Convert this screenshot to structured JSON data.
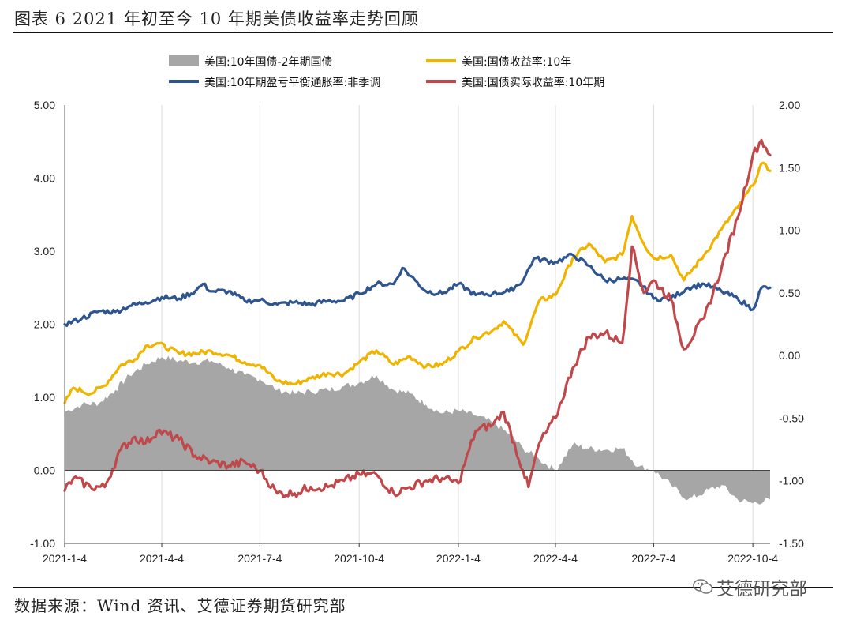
{
  "figure": {
    "title": "图表 6 2021 年初至今 10 年期美债收益率走势回顾",
    "source": "数据来源：Wind 资讯、艾德证券期货研究部",
    "watermark": "艾德研究部",
    "watermark_icon": "wechat-icon"
  },
  "chart_data": {
    "type": "line",
    "x_tick_labels": [
      "2021-1-4",
      "2021-4-4",
      "2021-7-4",
      "2021-10-4",
      "2022-1-4",
      "2022-4-4",
      "2022-7-4",
      "2022-10-4"
    ],
    "x_range": [
      "2021-01-04",
      "2022-10-20"
    ],
    "y_left": {
      "ticks": [
        "-1.00",
        "0.00",
        "1.00",
        "2.00",
        "3.00",
        "4.00",
        "5.00"
      ],
      "range": [
        -1,
        5
      ]
    },
    "y_right": {
      "ticks": [
        "-1.50",
        "-1.00",
        "-0.50",
        "0.00",
        "0.50",
        "1.00",
        "1.50",
        "2.00"
      ],
      "range": [
        -1.5,
        2
      ]
    },
    "grid": "vertical",
    "legend_position": "top",
    "series": [
      {
        "name": "美国:10年国债-2年期国债",
        "kind": "area",
        "axis": "left",
        "color": "#a6a6a6",
        "points": [
          [
            "2021-01-04",
            0.8
          ],
          [
            "2021-01-20",
            0.9
          ],
          [
            "2021-02-05",
            0.92
          ],
          [
            "2021-02-20",
            1.1
          ],
          [
            "2021-03-05",
            1.3
          ],
          [
            "2021-03-20",
            1.45
          ],
          [
            "2021-04-04",
            1.55
          ],
          [
            "2021-04-20",
            1.5
          ],
          [
            "2021-05-05",
            1.48
          ],
          [
            "2021-05-20",
            1.5
          ],
          [
            "2021-06-05",
            1.4
          ],
          [
            "2021-06-20",
            1.3
          ],
          [
            "2021-07-04",
            1.25
          ],
          [
            "2021-07-20",
            1.1
          ],
          [
            "2021-08-05",
            1.05
          ],
          [
            "2021-08-20",
            1.08
          ],
          [
            "2021-09-05",
            1.1
          ],
          [
            "2021-09-20",
            1.15
          ],
          [
            "2021-10-04",
            1.2
          ],
          [
            "2021-10-20",
            1.3
          ],
          [
            "2021-11-05",
            1.1
          ],
          [
            "2021-11-20",
            1.05
          ],
          [
            "2021-12-05",
            0.9
          ],
          [
            "2021-12-20",
            0.78
          ],
          [
            "2022-01-04",
            0.82
          ],
          [
            "2022-01-20",
            0.75
          ],
          [
            "2022-02-05",
            0.65
          ],
          [
            "2022-02-20",
            0.5
          ],
          [
            "2022-03-05",
            0.3
          ],
          [
            "2022-03-20",
            0.15
          ],
          [
            "2022-04-04",
            0.0
          ],
          [
            "2022-04-20",
            0.35
          ],
          [
            "2022-05-05",
            0.3
          ],
          [
            "2022-05-20",
            0.28
          ],
          [
            "2022-06-05",
            0.3
          ],
          [
            "2022-06-20",
            0.05
          ],
          [
            "2022-07-04",
            0.0
          ],
          [
            "2022-07-20",
            -0.2
          ],
          [
            "2022-08-05",
            -0.4
          ],
          [
            "2022-08-20",
            -0.3
          ],
          [
            "2022-09-05",
            -0.2
          ],
          [
            "2022-09-20",
            -0.4
          ],
          [
            "2022-10-04",
            -0.45
          ],
          [
            "2022-10-20",
            -0.4
          ]
        ]
      },
      {
        "name": "美国:国债收益率:10年",
        "kind": "line",
        "axis": "left",
        "color": "#f0b400",
        "points": [
          [
            "2021-01-04",
            0.92
          ],
          [
            "2021-01-12",
            1.13
          ],
          [
            "2021-01-28",
            1.05
          ],
          [
            "2021-02-10",
            1.16
          ],
          [
            "2021-02-25",
            1.44
          ],
          [
            "2021-03-10",
            1.52
          ],
          [
            "2021-03-20",
            1.7
          ],
          [
            "2021-03-31",
            1.74
          ],
          [
            "2021-04-20",
            1.6
          ],
          [
            "2021-05-05",
            1.6
          ],
          [
            "2021-05-20",
            1.63
          ],
          [
            "2021-06-05",
            1.58
          ],
          [
            "2021-06-20",
            1.48
          ],
          [
            "2021-07-04",
            1.44
          ],
          [
            "2021-07-20",
            1.22
          ],
          [
            "2021-08-05",
            1.18
          ],
          [
            "2021-08-20",
            1.26
          ],
          [
            "2021-09-05",
            1.33
          ],
          [
            "2021-09-20",
            1.32
          ],
          [
            "2021-10-04",
            1.48
          ],
          [
            "2021-10-20",
            1.64
          ],
          [
            "2021-11-05",
            1.45
          ],
          [
            "2021-11-20",
            1.56
          ],
          [
            "2021-12-05",
            1.42
          ],
          [
            "2021-12-20",
            1.45
          ],
          [
            "2022-01-04",
            1.63
          ],
          [
            "2022-01-20",
            1.82
          ],
          [
            "2022-02-05",
            1.92
          ],
          [
            "2022-02-15",
            2.04
          ],
          [
            "2022-03-05",
            1.72
          ],
          [
            "2022-03-20",
            2.32
          ],
          [
            "2022-04-04",
            2.4
          ],
          [
            "2022-04-20",
            2.9
          ],
          [
            "2022-05-05",
            3.1
          ],
          [
            "2022-05-20",
            2.85
          ],
          [
            "2022-06-05",
            2.95
          ],
          [
            "2022-06-14",
            3.48
          ],
          [
            "2022-06-25",
            3.1
          ],
          [
            "2022-07-04",
            2.9
          ],
          [
            "2022-07-20",
            2.95
          ],
          [
            "2022-08-01",
            2.6
          ],
          [
            "2022-08-20",
            2.95
          ],
          [
            "2022-09-05",
            3.3
          ],
          [
            "2022-09-20",
            3.6
          ],
          [
            "2022-10-04",
            3.9
          ],
          [
            "2022-10-12",
            4.2
          ],
          [
            "2022-10-20",
            4.1
          ]
        ]
      },
      {
        "name": "美国:10年期盈亏平衡通胀率:非季调",
        "kind": "line",
        "axis": "left",
        "color": "#2e5590",
        "points": [
          [
            "2021-01-04",
            2.0
          ],
          [
            "2021-01-20",
            2.08
          ],
          [
            "2021-02-05",
            2.18
          ],
          [
            "2021-02-20",
            2.17
          ],
          [
            "2021-03-05",
            2.25
          ],
          [
            "2021-03-20",
            2.3
          ],
          [
            "2021-04-04",
            2.37
          ],
          [
            "2021-04-20",
            2.35
          ],
          [
            "2021-05-05",
            2.45
          ],
          [
            "2021-05-12",
            2.55
          ],
          [
            "2021-05-20",
            2.45
          ],
          [
            "2021-06-05",
            2.45
          ],
          [
            "2021-06-20",
            2.32
          ],
          [
            "2021-07-04",
            2.33
          ],
          [
            "2021-07-20",
            2.27
          ],
          [
            "2021-08-05",
            2.3
          ],
          [
            "2021-08-20",
            2.27
          ],
          [
            "2021-09-05",
            2.32
          ],
          [
            "2021-09-20",
            2.32
          ],
          [
            "2021-10-04",
            2.42
          ],
          [
            "2021-10-20",
            2.55
          ],
          [
            "2021-11-05",
            2.55
          ],
          [
            "2021-11-13",
            2.77
          ],
          [
            "2021-11-25",
            2.6
          ],
          [
            "2021-12-05",
            2.45
          ],
          [
            "2021-12-20",
            2.42
          ],
          [
            "2022-01-04",
            2.55
          ],
          [
            "2022-01-20",
            2.4
          ],
          [
            "2022-02-05",
            2.42
          ],
          [
            "2022-02-20",
            2.45
          ],
          [
            "2022-03-05",
            2.6
          ],
          [
            "2022-03-15",
            2.9
          ],
          [
            "2022-04-04",
            2.85
          ],
          [
            "2022-04-20",
            2.95
          ],
          [
            "2022-05-05",
            2.8
          ],
          [
            "2022-05-20",
            2.6
          ],
          [
            "2022-06-05",
            2.62
          ],
          [
            "2022-06-20",
            2.58
          ],
          [
            "2022-07-04",
            2.35
          ],
          [
            "2022-07-20",
            2.35
          ],
          [
            "2022-08-05",
            2.5
          ],
          [
            "2022-08-20",
            2.55
          ],
          [
            "2022-09-05",
            2.45
          ],
          [
            "2022-09-20",
            2.35
          ],
          [
            "2022-10-04",
            2.2
          ],
          [
            "2022-10-12",
            2.5
          ],
          [
            "2022-10-20",
            2.5
          ]
        ]
      },
      {
        "name": "美国:国债实际收益率:10年期",
        "kind": "line",
        "axis": "right",
        "color": "#c0484b",
        "points": [
          [
            "2021-01-04",
            -1.08
          ],
          [
            "2021-01-12",
            -0.98
          ],
          [
            "2021-01-28",
            -1.05
          ],
          [
            "2021-02-10",
            -1.05
          ],
          [
            "2021-02-25",
            -0.75
          ],
          [
            "2021-03-10",
            -0.65
          ],
          [
            "2021-03-20",
            -0.7
          ],
          [
            "2021-03-31",
            -0.6
          ],
          [
            "2021-04-20",
            -0.67
          ],
          [
            "2021-05-05",
            -0.8
          ],
          [
            "2021-05-20",
            -0.85
          ],
          [
            "2021-06-05",
            -0.88
          ],
          [
            "2021-06-20",
            -0.85
          ],
          [
            "2021-07-04",
            -0.92
          ],
          [
            "2021-07-20",
            -1.1
          ],
          [
            "2021-08-05",
            -1.1
          ],
          [
            "2021-08-20",
            -1.05
          ],
          [
            "2021-09-05",
            -1.05
          ],
          [
            "2021-09-20",
            -1.0
          ],
          [
            "2021-10-04",
            -0.95
          ],
          [
            "2021-10-20",
            -0.95
          ],
          [
            "2021-11-05",
            -1.1
          ],
          [
            "2021-11-20",
            -1.05
          ],
          [
            "2021-12-05",
            -1.0
          ],
          [
            "2021-12-20",
            -0.98
          ],
          [
            "2022-01-04",
            -1.02
          ],
          [
            "2022-01-20",
            -0.6
          ],
          [
            "2022-02-05",
            -0.55
          ],
          [
            "2022-02-15",
            -0.45
          ],
          [
            "2022-03-05",
            -0.92
          ],
          [
            "2022-03-10",
            -1.05
          ],
          [
            "2022-03-20",
            -0.7
          ],
          [
            "2022-04-04",
            -0.5
          ],
          [
            "2022-04-20",
            -0.1
          ],
          [
            "2022-05-05",
            0.15
          ],
          [
            "2022-05-20",
            0.18
          ],
          [
            "2022-06-05",
            0.1
          ],
          [
            "2022-06-14",
            0.87
          ],
          [
            "2022-06-25",
            0.5
          ],
          [
            "2022-07-04",
            0.6
          ],
          [
            "2022-07-20",
            0.45
          ],
          [
            "2022-08-01",
            0.05
          ],
          [
            "2022-08-20",
            0.3
          ],
          [
            "2022-09-05",
            0.7
          ],
          [
            "2022-09-20",
            1.1
          ],
          [
            "2022-10-04",
            1.6
          ],
          [
            "2022-10-12",
            1.72
          ],
          [
            "2022-10-20",
            1.6
          ]
        ]
      }
    ]
  }
}
